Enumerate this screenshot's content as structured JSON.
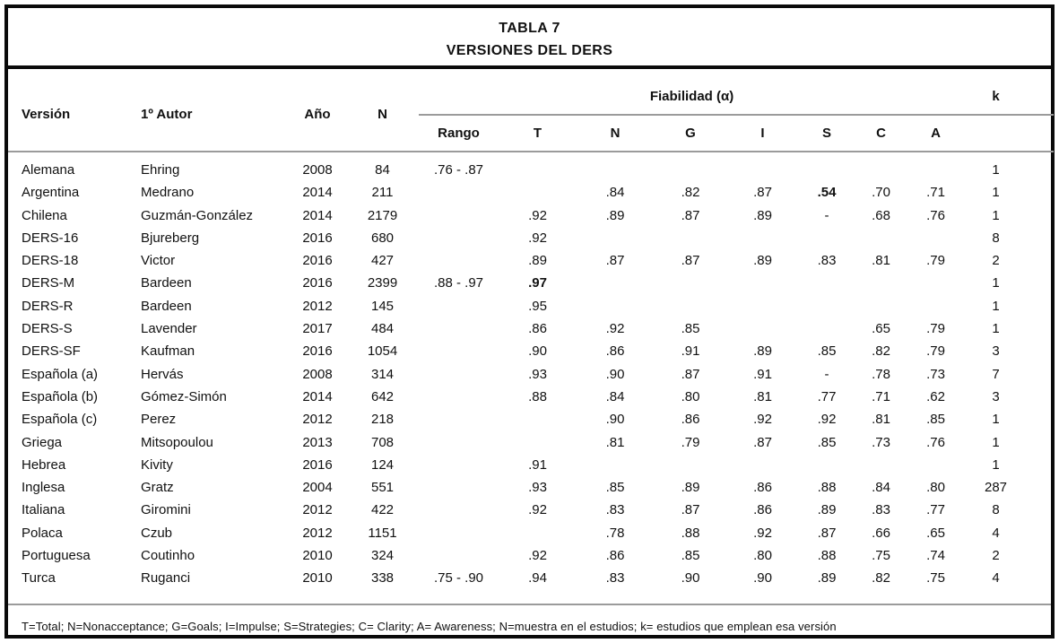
{
  "colors": {
    "frame_border": "#0a0a0a",
    "rule_gray": "#9b9b9b",
    "text": "#111111",
    "background": "#ffffff"
  },
  "title": {
    "line1": "TABLA 7",
    "line2": "VERSIONES DEL DERS"
  },
  "header": {
    "version": "Versión",
    "autor": "1º Autor",
    "ano": "Año",
    "n": "N",
    "fiabilidad": "Fiabilidad (α)",
    "k": "k",
    "subcolumns": [
      "Rango",
      "T",
      "N",
      "G",
      "I",
      "S",
      "C",
      "A"
    ]
  },
  "rows": [
    {
      "cells": [
        "Alemana",
        "Ehring",
        "2008",
        "84",
        ".76 - .87",
        "",
        "",
        "",
        "",
        "",
        "",
        "",
        "1"
      ],
      "bold": []
    },
    {
      "cells": [
        "Argentina",
        "Medrano",
        "2014",
        "211",
        "",
        "",
        ".84",
        ".82",
        ".87",
        ".54",
        ".70",
        ".71",
        "1"
      ],
      "bold": [
        9
      ]
    },
    {
      "cells": [
        "Chilena",
        "Guzmán-González",
        "2014",
        "2179",
        "",
        ".92",
        ".89",
        ".87",
        ".89",
        "-",
        ".68",
        ".76",
        "1"
      ],
      "bold": []
    },
    {
      "cells": [
        "DERS-16",
        "Bjureberg",
        "2016",
        "680",
        "",
        ".92",
        "",
        "",
        "",
        "",
        "",
        "",
        "8"
      ],
      "bold": []
    },
    {
      "cells": [
        "DERS-18",
        "Victor",
        "2016",
        "427",
        "",
        ".89",
        ".87",
        ".87",
        ".89",
        ".83",
        ".81",
        ".79",
        "2"
      ],
      "bold": []
    },
    {
      "cells": [
        "DERS-M",
        "Bardeen",
        "2016",
        "2399",
        ".88 - .97",
        ".97",
        "",
        "",
        "",
        "",
        "",
        "",
        "1"
      ],
      "bold": [
        5
      ]
    },
    {
      "cells": [
        "DERS-R",
        "Bardeen",
        "2012",
        "145",
        "",
        ".95",
        "",
        "",
        "",
        "",
        "",
        "",
        "1"
      ],
      "bold": []
    },
    {
      "cells": [
        "DERS-S",
        "Lavender",
        "2017",
        "484",
        "",
        ".86",
        ".92",
        ".85",
        "",
        "",
        ".65",
        ".79",
        "1"
      ],
      "bold": []
    },
    {
      "cells": [
        "DERS-SF",
        "Kaufman",
        "2016",
        "1054",
        "",
        ".90",
        ".86",
        ".91",
        ".89",
        ".85",
        ".82",
        ".79",
        "3"
      ],
      "bold": []
    },
    {
      "cells": [
        "Española (a)",
        "Hervás",
        "2008",
        "314",
        "",
        ".93",
        ".90",
        ".87",
        ".91",
        "-",
        ".78",
        ".73",
        "7"
      ],
      "bold": []
    },
    {
      "cells": [
        "Española (b)",
        "Gómez-Simón",
        "2014",
        "642",
        "",
        ".88",
        ".84",
        ".80",
        ".81",
        ".77",
        ".71",
        ".62",
        "3"
      ],
      "bold": []
    },
    {
      "cells": [
        "Española (c)",
        "Perez",
        "2012",
        "218",
        "",
        "",
        ".90",
        ".86",
        ".92",
        ".92",
        ".81",
        ".85",
        "1"
      ],
      "bold": []
    },
    {
      "cells": [
        "Griega",
        "Mitsopoulou",
        "2013",
        "708",
        "",
        "",
        ".81",
        ".79",
        ".87",
        ".85",
        ".73",
        ".76",
        "1"
      ],
      "bold": []
    },
    {
      "cells": [
        "Hebrea",
        "Kivity",
        "2016",
        "124",
        "",
        ".91",
        "",
        "",
        "",
        "",
        "",
        "",
        "1"
      ],
      "bold": []
    },
    {
      "cells": [
        "Inglesa",
        "Gratz",
        "2004",
        "551",
        "",
        ".93",
        ".85",
        ".89",
        ".86",
        ".88",
        ".84",
        ".80",
        "287"
      ],
      "bold": []
    },
    {
      "cells": [
        "Italiana",
        "Giromini",
        "2012",
        "422",
        "",
        ".92",
        ".83",
        ".87",
        ".86",
        ".89",
        ".83",
        ".77",
        "8"
      ],
      "bold": []
    },
    {
      "cells": [
        "Polaca",
        "Czub",
        "2012",
        "1151",
        "",
        "",
        ".78",
        ".88",
        ".92",
        ".87",
        ".66",
        ".65",
        "4"
      ],
      "bold": []
    },
    {
      "cells": [
        "Portuguesa",
        "Coutinho",
        "2010",
        "324",
        "",
        ".92",
        ".86",
        ".85",
        ".80",
        ".88",
        ".75",
        ".74",
        "2"
      ],
      "bold": []
    },
    {
      "cells": [
        "Turca",
        "Ruganci",
        "2010",
        "338",
        ".75 - .90",
        ".94",
        ".83",
        ".90",
        ".90",
        ".89",
        ".82",
        ".75",
        "4"
      ],
      "bold": []
    }
  ],
  "footnote": "T=Total; N=Nonacceptance; G=Goals; I=Impulse; S=Strategies; C= Clarity; A= Awareness; N=muestra en el estudios; k= estudios que emplean esa versión"
}
